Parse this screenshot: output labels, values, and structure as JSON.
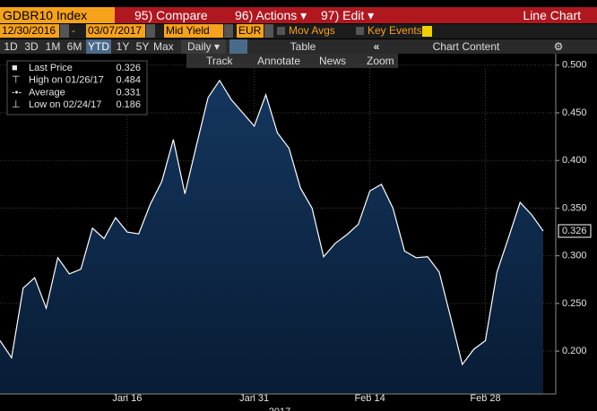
{
  "header": {
    "ticker": "GDBR10 Index",
    "menu": [
      "95) Compare",
      "96) Actions ▾",
      "97) Edit ▾"
    ],
    "view": "Line Chart"
  },
  "controls": {
    "start_date": "12/30/2016",
    "end_date": "03/07/2017",
    "field": "Mid Yield",
    "currency": "EUR",
    "options": [
      "Mov Avgs",
      "Key Events"
    ]
  },
  "toolbar": {
    "ranges": [
      "1D",
      "3D",
      "1M",
      "6M",
      "YTD",
      "1Y",
      "5Y",
      "Max"
    ],
    "frequency": "Daily ▾",
    "table": "Table",
    "collapse": "«",
    "chart_content": "Chart Content"
  },
  "tools": [
    "Track",
    "Annotate",
    "News",
    "Zoom"
  ],
  "chart_data": {
    "type": "area",
    "legend_items": [
      {
        "label": "Last Price",
        "value": 0.326
      },
      {
        "label": "High on 01/26/17",
        "value": 0.484
      },
      {
        "label": "Average",
        "value": 0.331
      },
      {
        "label": "Low on 02/24/17",
        "value": 0.186
      }
    ],
    "categories": [
      null,
      null,
      null,
      null,
      null,
      null,
      null,
      null,
      null,
      null,
      null,
      "Jan 16",
      null,
      null,
      null,
      null,
      null,
      null,
      null,
      null,
      null,
      null,
      "Jan 31",
      null,
      null,
      null,
      null,
      null,
      null,
      null,
      null,
      null,
      "Feb 14",
      null,
      null,
      null,
      null,
      null,
      null,
      null,
      null,
      null,
      "Feb 28",
      null,
      null,
      null,
      null,
      null
    ],
    "x_label": "2017",
    "series": [
      {
        "name": "Last Price",
        "color": "#ffffff",
        "values": [
          0.211,
          0.193,
          0.266,
          0.277,
          0.245,
          0.298,
          0.281,
          0.286,
          0.329,
          0.318,
          0.34,
          0.325,
          0.323,
          0.354,
          0.378,
          0.422,
          0.365,
          0.416,
          0.466,
          0.484,
          0.464,
          0.45,
          0.436,
          0.469,
          0.429,
          0.413,
          0.371,
          0.35,
          0.299,
          0.313,
          0.322,
          0.333,
          0.368,
          0.375,
          0.35,
          0.305,
          0.298,
          0.299,
          0.283,
          0.235,
          0.186,
          0.202,
          0.211,
          0.283,
          0.319,
          0.356,
          0.343,
          0.326
        ]
      }
    ],
    "fill_color": "#0d2a4c",
    "ylim": [
      0.155,
      0.512
    ],
    "yticks": [
      {
        "value": 0.2,
        "label": "0.200"
      },
      {
        "value": 0.25,
        "label": "0.250"
      },
      {
        "value": 0.3,
        "label": "0.300"
      },
      {
        "value": 0.35,
        "label": "0.350"
      },
      {
        "value": 0.4,
        "label": "0.400"
      },
      {
        "value": 0.45,
        "label": "0.450"
      },
      {
        "value": 0.5,
        "label": "0.500"
      }
    ],
    "grid": true
  }
}
